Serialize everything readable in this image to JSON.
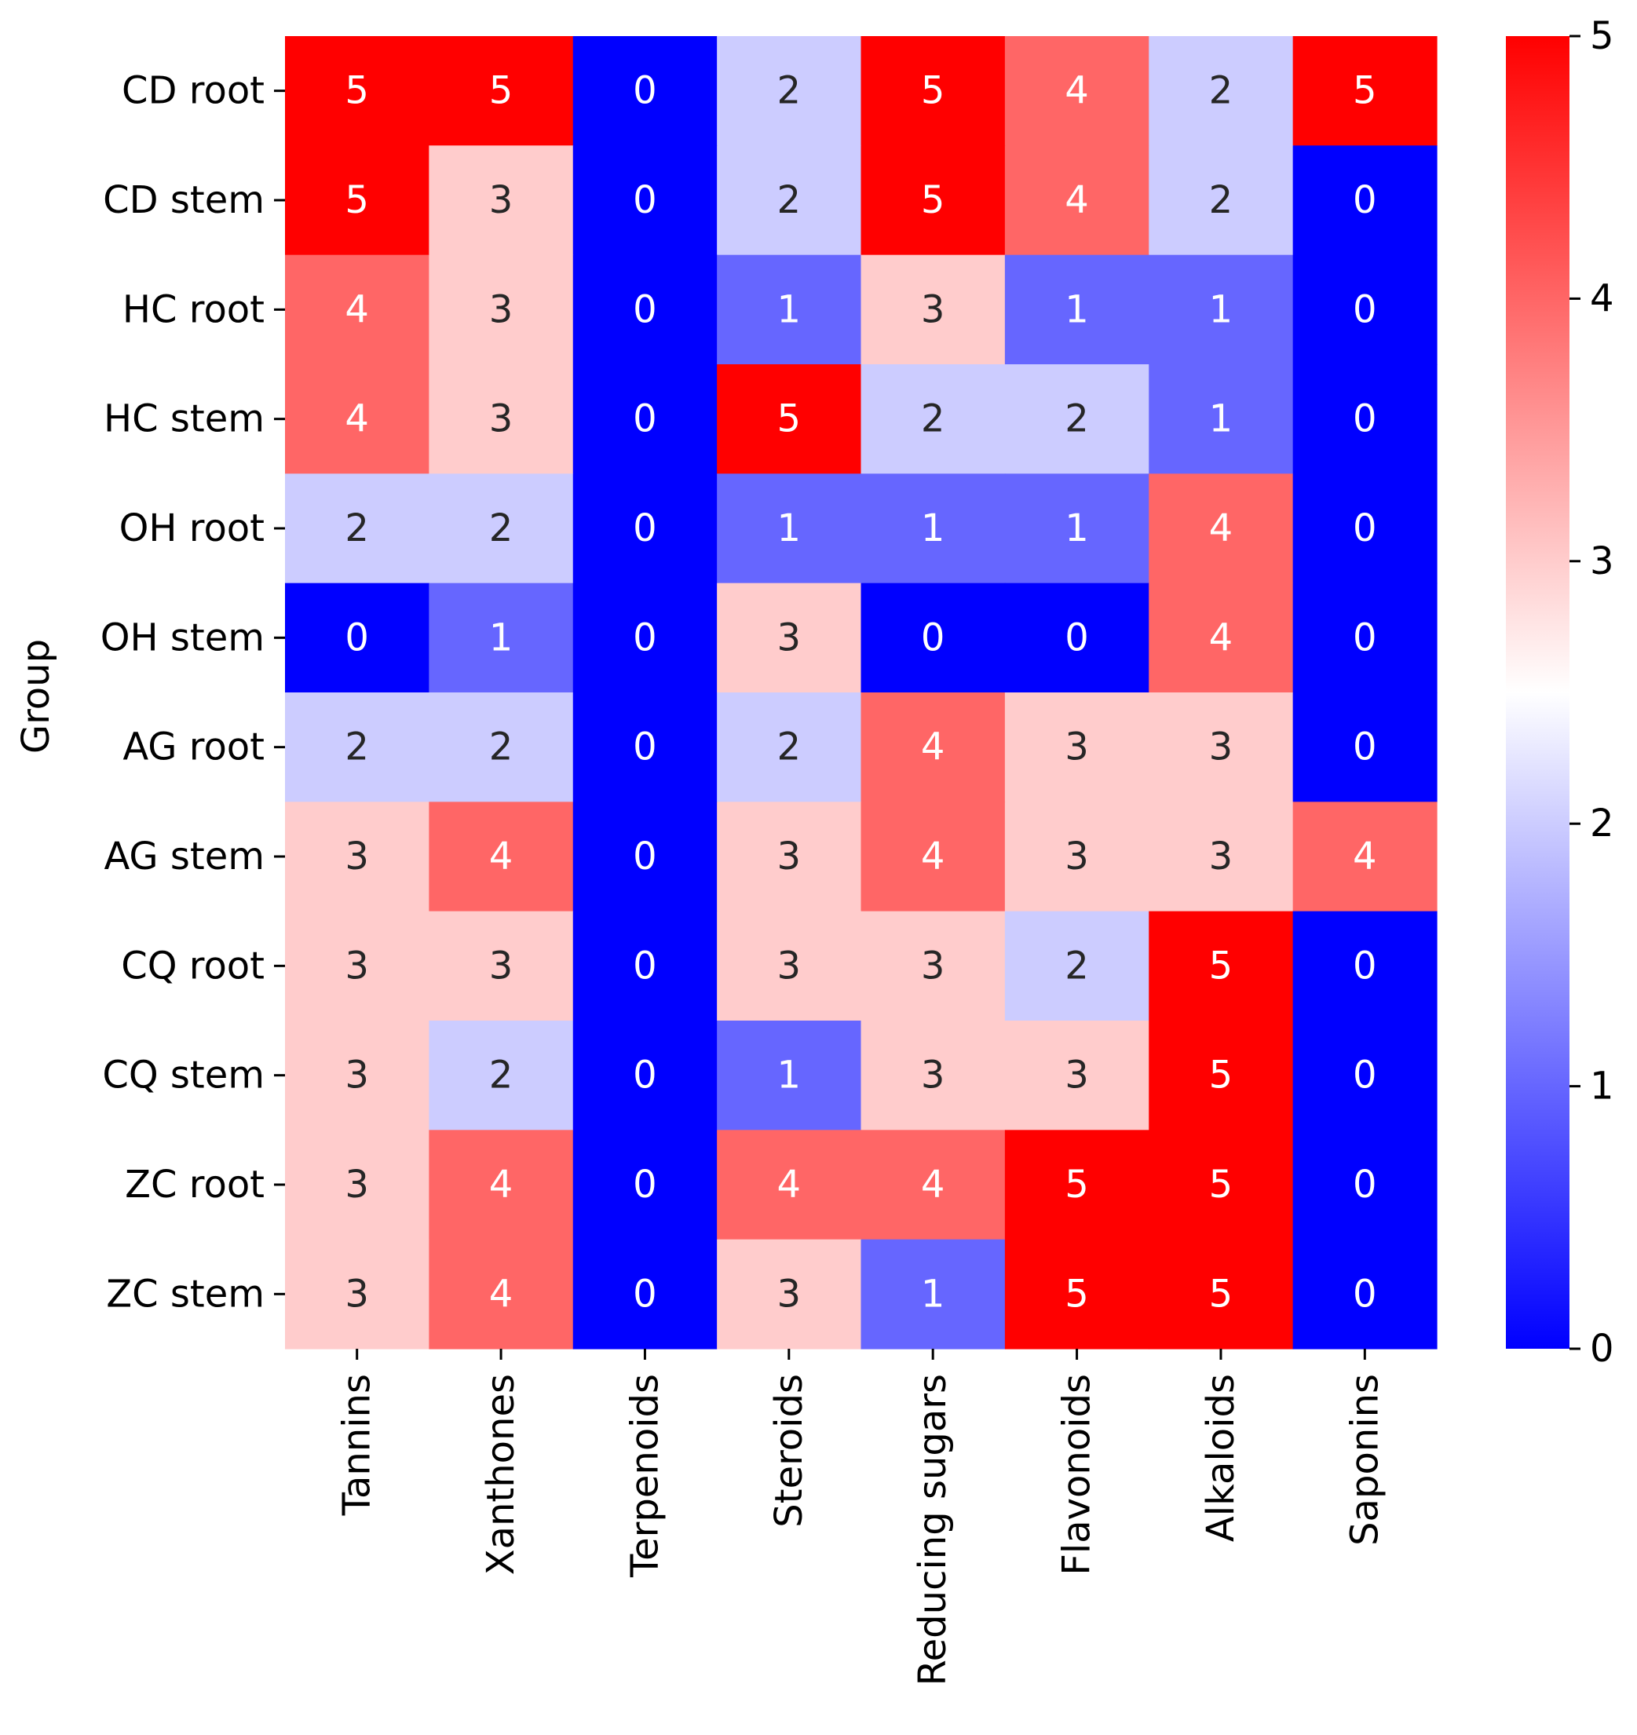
{
  "chart_data": {
    "type": "heatmap",
    "title": "",
    "xlabel": "",
    "ylabel": "Group",
    "columns": [
      "Tannins",
      "Xanthones",
      "Terpenoids",
      "Steroids",
      "Reducing sugars",
      "Flavonoids",
      "Alkaloids",
      "Saponins"
    ],
    "rows": [
      "CD root",
      "CD stem",
      "HC root",
      "HC stem",
      "OH root",
      "OH stem",
      "AG root",
      "AG stem",
      "CQ root",
      "CQ stem",
      "ZC root",
      "ZC stem"
    ],
    "values": [
      [
        5,
        5,
        0,
        2,
        5,
        4,
        2,
        5
      ],
      [
        5,
        3,
        0,
        2,
        5,
        4,
        2,
        0
      ],
      [
        4,
        3,
        0,
        1,
        3,
        1,
        1,
        0
      ],
      [
        4,
        3,
        0,
        5,
        2,
        2,
        1,
        0
      ],
      [
        2,
        2,
        0,
        1,
        1,
        1,
        4,
        0
      ],
      [
        0,
        1,
        0,
        3,
        0,
        0,
        4,
        0
      ],
      [
        2,
        2,
        0,
        2,
        4,
        3,
        3,
        0
      ],
      [
        3,
        4,
        0,
        3,
        4,
        3,
        3,
        4
      ],
      [
        3,
        3,
        0,
        3,
        3,
        2,
        5,
        0
      ],
      [
        3,
        2,
        0,
        1,
        3,
        3,
        5,
        0
      ],
      [
        3,
        4,
        0,
        4,
        4,
        5,
        5,
        0
      ],
      [
        3,
        4,
        0,
        3,
        1,
        5,
        5,
        0
      ]
    ],
    "colorbar": {
      "range": [
        0,
        5
      ],
      "ticks": [
        0,
        1,
        2,
        3,
        4,
        5
      ],
      "center": 2.5,
      "colormap": "bwr"
    },
    "colors": {
      "low": "#0000ff",
      "mid": "#ffffff",
      "high": "#ff0000",
      "annotation_light": "#ffffff",
      "annotation_dark": "#262626",
      "axis": "#000000"
    },
    "grid": false,
    "annotations": true
  }
}
